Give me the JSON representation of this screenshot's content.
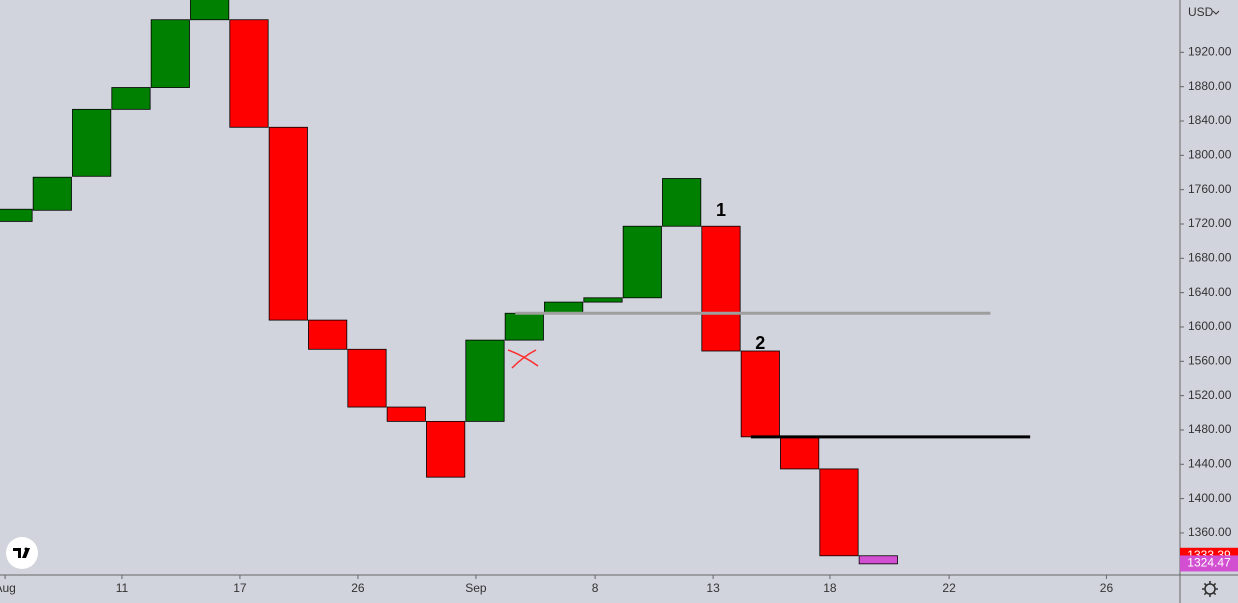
{
  "chart_data": {
    "type": "renko",
    "open": [
      1723,
      1736,
      1775.6,
      1853.6,
      1879,
      1958,
      1958,
      1832.7,
      1608,
      1574,
      1506.7,
      1490,
      1490,
      1584.7,
      1616,
      1629,
      1634,
      1717.4,
      1717.4,
      1572,
      1472,
      1434.6,
      1333.4
    ],
    "close": [
      1737.2,
      1774.5,
      1853.6,
      1879,
      1958,
      1985,
      1832.7,
      1608,
      1574,
      1506.7,
      1490,
      1425,
      1584.7,
      1616,
      1629,
      1634,
      1717.4,
      1773,
      1572,
      1472,
      1434.6,
      1333.4,
      1324
    ],
    "colors": [
      "#008000",
      "#008000",
      "#008000",
      "#008000",
      "#008000",
      "#008000",
      "#ff0000",
      "#ff0000",
      "#ff0000",
      "#ff0000",
      "#ff0000",
      "#ff0000",
      "#008000",
      "#008000",
      "#008000",
      "#008000",
      "#008000",
      "#008000",
      "#ff0000",
      "#ff0000",
      "#ff0000",
      "#ff0000",
      "#d24fd2"
    ],
    "ylim": [
      1311,
      1981
    ],
    "yticks": [
      {
        "value": 1360,
        "label": "1360.00"
      },
      {
        "value": 1400,
        "label": "1400.00"
      },
      {
        "value": 1440,
        "label": "1440.00"
      },
      {
        "value": 1480,
        "label": "1480.00"
      },
      {
        "value": 1520,
        "label": "1520.00"
      },
      {
        "value": 1560,
        "label": "1560.00"
      },
      {
        "value": 1600,
        "label": "1600.00"
      },
      {
        "value": 1640,
        "label": "1640.00"
      },
      {
        "value": 1680,
        "label": "1680.00"
      },
      {
        "value": 1720,
        "label": "1720.00"
      },
      {
        "value": 1760,
        "label": "1760.00"
      },
      {
        "value": 1800,
        "label": "1800.00"
      },
      {
        "value": 1840,
        "label": "1840.00"
      },
      {
        "value": 1880,
        "label": "1880.00"
      },
      {
        "value": 1920,
        "label": "1920.00"
      }
    ],
    "xlim": [
      -0.33,
      29.67
    ],
    "xticks": [
      {
        "value": -0.2,
        "label": "Aug"
      },
      {
        "value": 2.77,
        "label": "11"
      },
      {
        "value": 5.77,
        "label": "17"
      },
      {
        "value": 8.77,
        "label": "26"
      },
      {
        "value": 11.77,
        "label": "Sep"
      },
      {
        "value": 14.8,
        "label": "8"
      },
      {
        "value": 17.8,
        "label": "13"
      },
      {
        "value": 20.77,
        "label": "18"
      },
      {
        "value": 23.8,
        "label": "22"
      },
      {
        "value": 27.8,
        "label": "26"
      }
    ],
    "currency": "USD",
    "hlines": [
      {
        "value": 1616,
        "x": [
          12.77,
          24.85
        ],
        "color": "#9e9e9e"
      },
      {
        "value": 1472,
        "x": [
          18.76,
          25.86
        ],
        "color": "#000000"
      }
    ],
    "annotations": [
      {
        "text": "1",
        "x": 18,
        "y": 1735
      },
      {
        "text": "2",
        "x": 19,
        "y": 1580
      }
    ],
    "last_prices": [
      {
        "value": 1333.39,
        "color": "#ff0000"
      },
      {
        "value": 1324.47,
        "color": "#d24fd2"
      }
    ]
  }
}
